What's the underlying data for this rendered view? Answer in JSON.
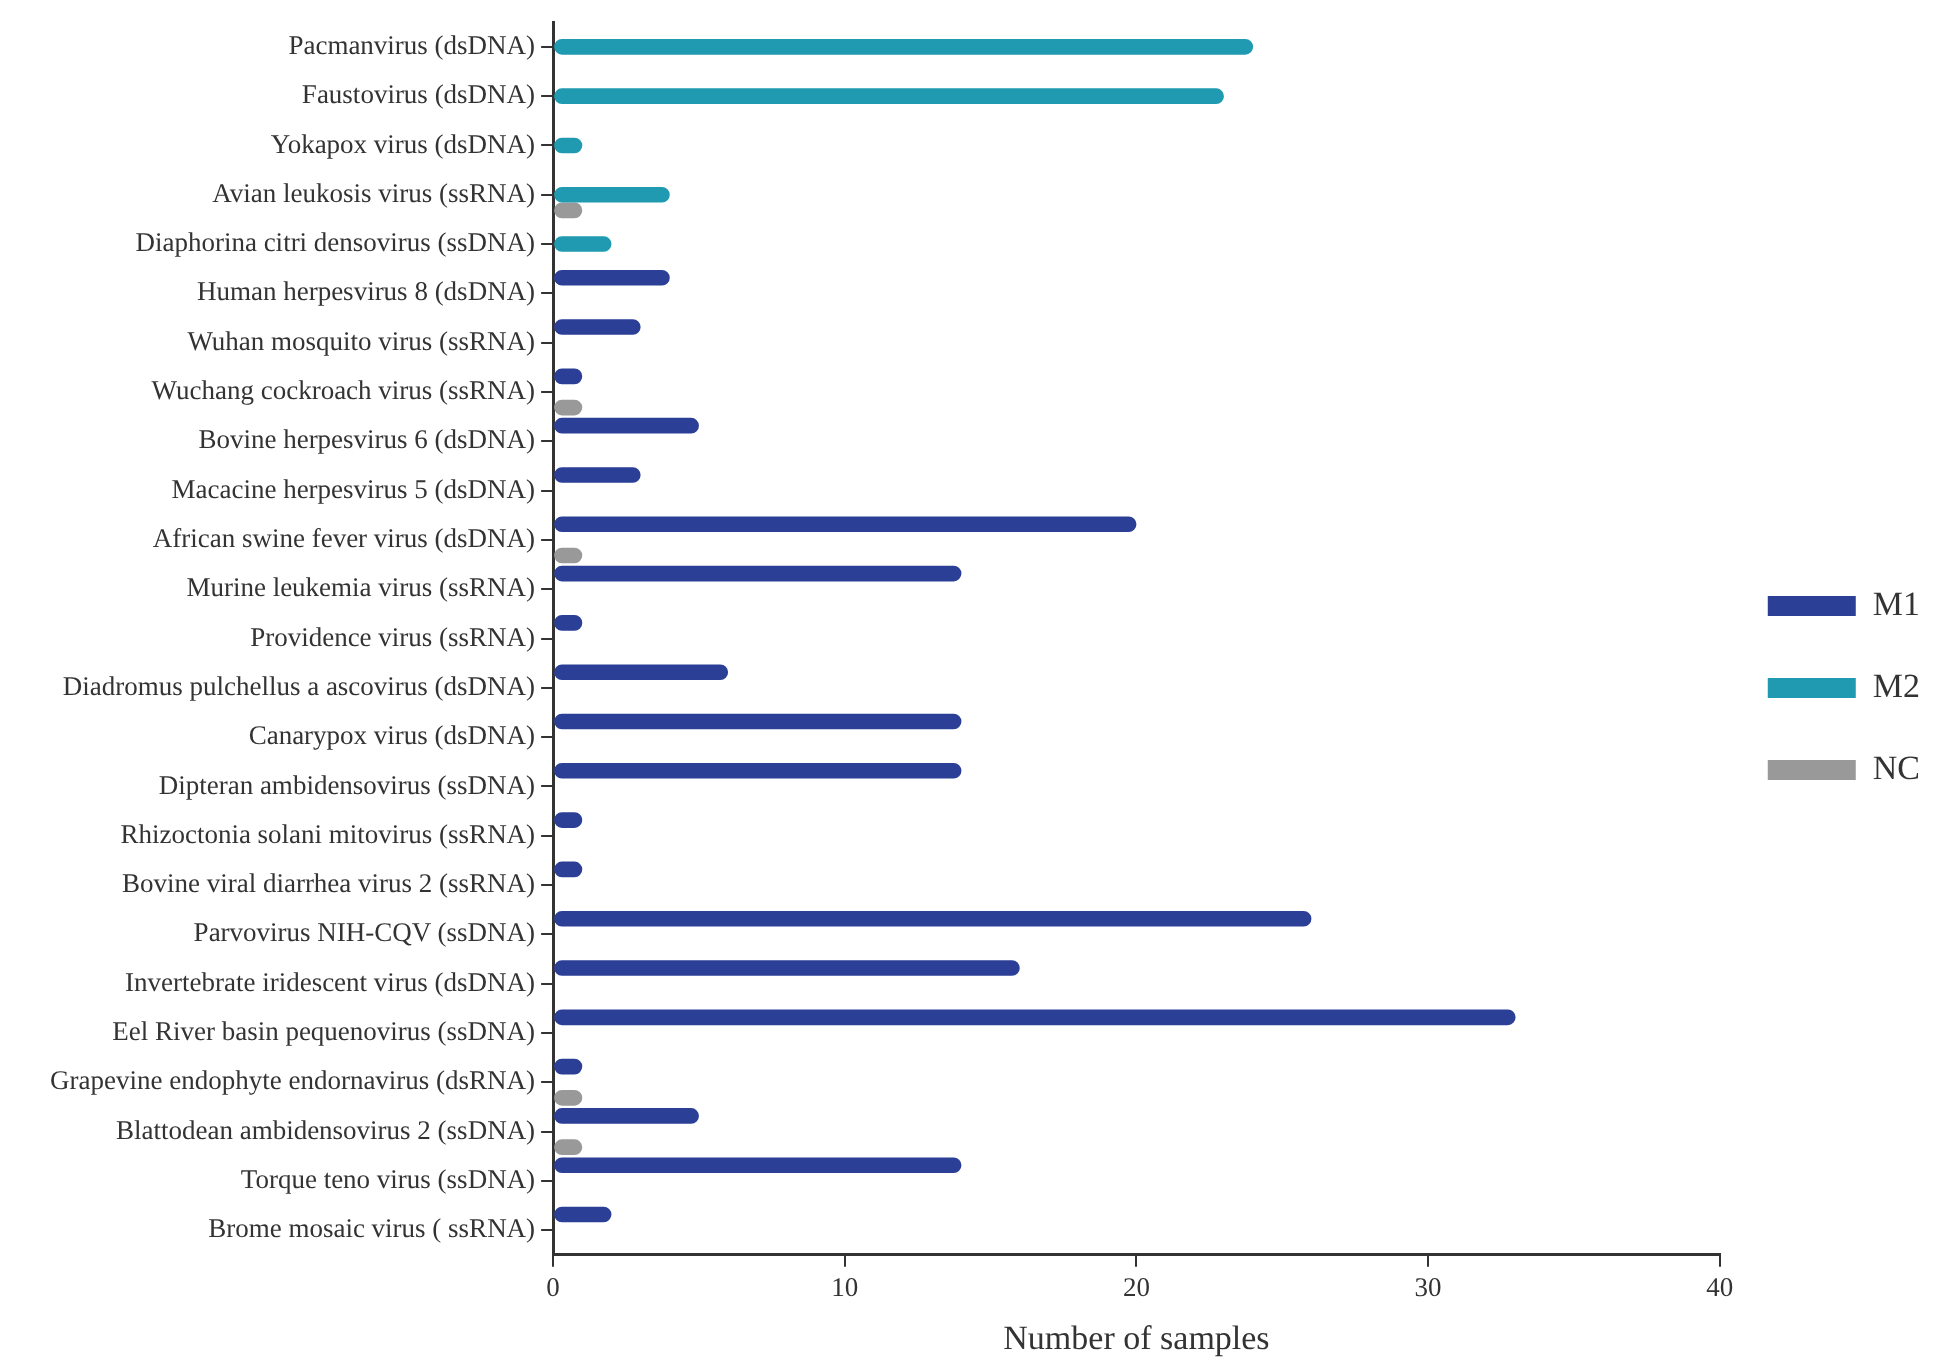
{
  "chart_data": {
    "type": "bar",
    "orientation": "horizontal",
    "xlabel": "Number of samples",
    "categories": [
      "Pacmanvirus (dsDNA)",
      "Faustovirus (dsDNA)",
      "Yokapox virus (dsDNA)",
      "Avian leukosis virus (ssRNA)",
      "Diaphorina citri densovirus (ssDNA)",
      "Human herpesvirus 8 (dsDNA)",
      "Wuhan mosquito virus (ssRNA)",
      "Wuchang cockroach virus (ssRNA)",
      "Bovine herpesvirus 6 (dsDNA)",
      "Macacine herpesvirus 5 (dsDNA)",
      "African swine fever virus (dsDNA)",
      "Murine leukemia virus (ssRNA)",
      "Providence virus (ssRNA)",
      "Diadromus pulchellus a ascovirus (dsDNA)",
      "Canarypox virus (dsDNA)",
      "Dipteran ambidensovirus (ssDNA)",
      "Rhizoctonia solani mitovirus (ssRNA)",
      "Bovine viral diarrhea virus 2 (ssRNA)",
      "Parvovirus NIH-CQV (ssDNA)",
      "Invertebrate iridescent virus (dsDNA)",
      "Eel River basin pequenovirus (ssDNA)",
      "Grapevine endophyte endornavirus (dsRNA)",
      "Blattodean ambidensovirus 2 (ssDNA)",
      "Torque teno virus (ssDNA)",
      "Brome mosaic virus ( ssRNA)"
    ],
    "series": [
      {
        "name": "M1",
        "color": "#2b3f97",
        "values": [
          0,
          0,
          0,
          0,
          0,
          4,
          3,
          1,
          5,
          3,
          20,
          14,
          1,
          6,
          14,
          14,
          1,
          1,
          26,
          16,
          33,
          1,
          5,
          14,
          2
        ]
      },
      {
        "name": "M2",
        "color": "#1f9ab0",
        "values": [
          24,
          23,
          1,
          4,
          2,
          0,
          0,
          0,
          0,
          0,
          0,
          0,
          0,
          0,
          0,
          0,
          0,
          0,
          0,
          0,
          0,
          0,
          0,
          0,
          0
        ]
      },
      {
        "name": "NC",
        "color": "#999999",
        "values": [
          0,
          0,
          0,
          1,
          0,
          0,
          0,
          1,
          0,
          0,
          1,
          0,
          0,
          0,
          0,
          0,
          0,
          0,
          0,
          0,
          0,
          1,
          1,
          0,
          0
        ]
      }
    ],
    "xlim": [
      0,
      40
    ],
    "xticks": [
      0,
      10,
      20,
      30,
      40
    ],
    "grid": false,
    "legend": "right"
  }
}
